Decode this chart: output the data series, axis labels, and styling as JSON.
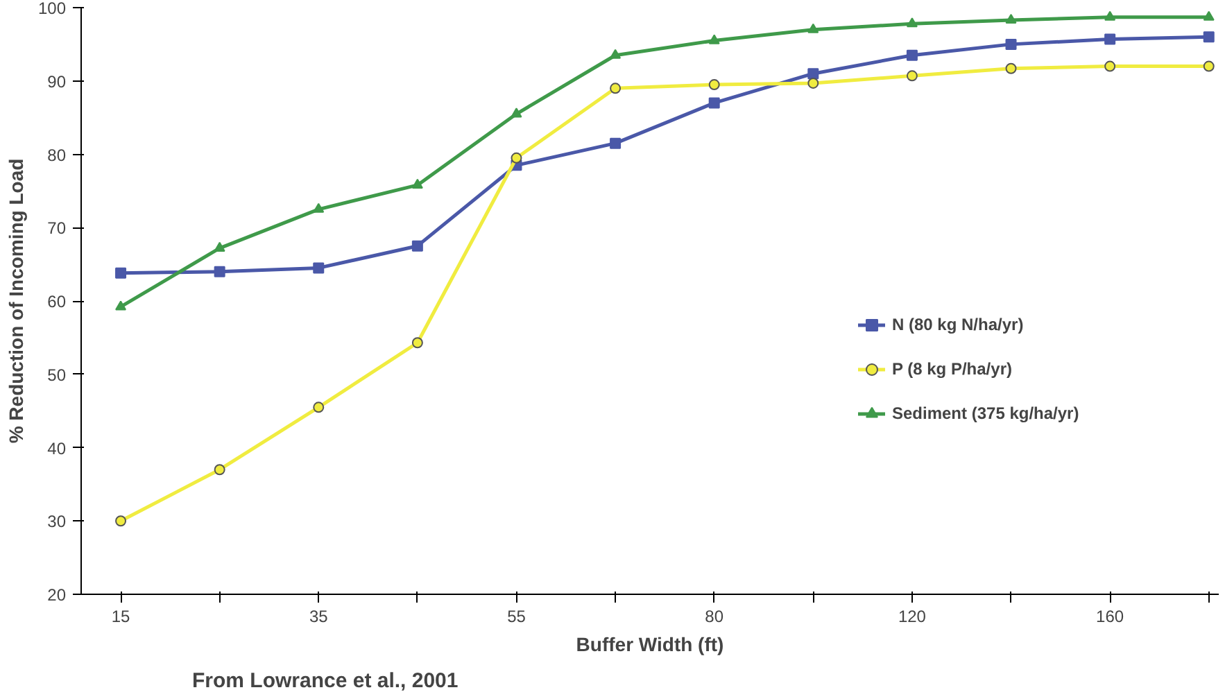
{
  "chart_data": {
    "type": "line",
    "xlabel": "Buffer Width (ft)",
    "ylabel": "% Reduction of Incoming Load",
    "categories": [
      "15",
      null,
      "35",
      null,
      "55",
      null,
      "80",
      null,
      "120",
      null,
      "160",
      null
    ],
    "ylim": [
      20,
      100
    ],
    "yticks": [
      20,
      30,
      40,
      50,
      60,
      70,
      80,
      90,
      100
    ],
    "grid": false,
    "legend": "right",
    "line_style": "solid",
    "series": [
      {
        "name": "N (80 kg N/ha/yr)",
        "color": "#4a58a8",
        "marker": "square",
        "values": [
          63.8,
          64,
          64.5,
          67.5,
          78.5,
          81.5,
          87,
          91,
          93.5,
          95,
          95.7,
          96
        ]
      },
      {
        "name": "P (8 kg P/ha/yr)",
        "color": "#f0ec40",
        "marker": "circle",
        "values": [
          30,
          37,
          45.5,
          54.3,
          79.5,
          89,
          89.5,
          89.7,
          90.7,
          91.7,
          92,
          92
        ]
      },
      {
        "name": "Sediment (375 kg/ha/yr)",
        "color": "#3f9a4a",
        "marker": "triangle",
        "values": [
          59.2,
          67.2,
          72.5,
          75.8,
          85.5,
          93.5,
          95.5,
          97,
          97.8,
          98.3,
          98.7,
          98.7
        ]
      }
    ],
    "annotations": [
      "From Lowrance et al., 2001"
    ]
  }
}
